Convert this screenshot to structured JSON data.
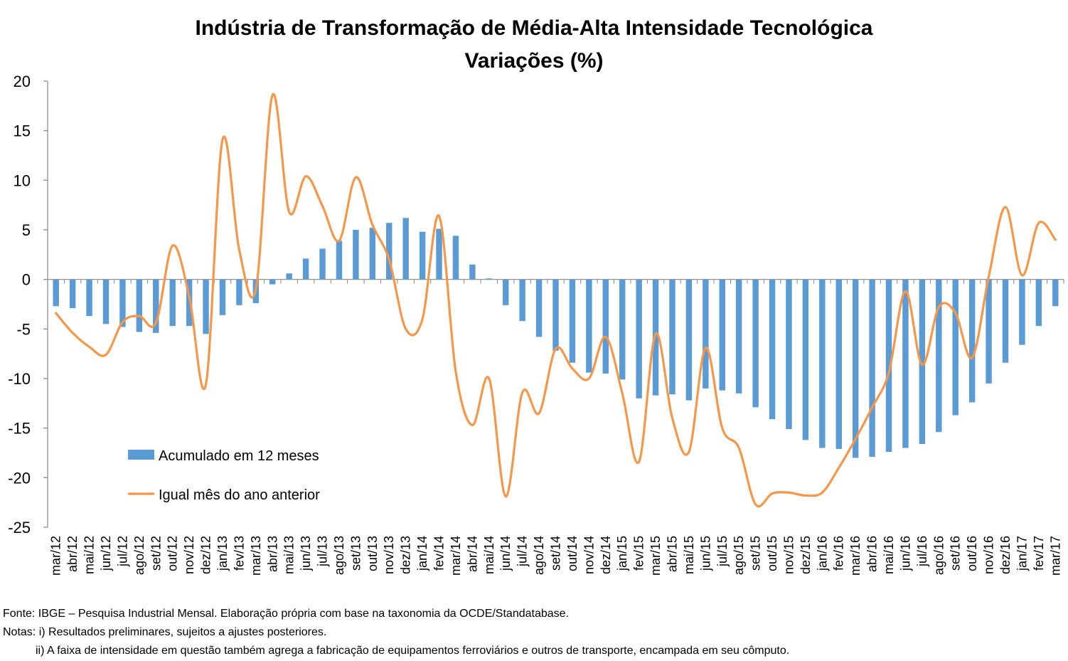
{
  "chart_data": {
    "type": "bar+line",
    "title": "Indústria de Transformação de Média-Alta Intensidade Tecnológica",
    "subtitle": "Variações (%)",
    "xlabel": "",
    "ylabel": "",
    "ylim": [
      -25,
      20
    ],
    "yticks": [
      20,
      15,
      10,
      5,
      0,
      -5,
      -10,
      -15,
      -20,
      -25
    ],
    "legend_position": "bottom-left",
    "grid": false,
    "categories": [
      "mar/12",
      "abr/12",
      "mai/12",
      "jun/12",
      "jul/12",
      "ago/12",
      "set/12",
      "out/12",
      "nov/12",
      "dez/12",
      "jan/13",
      "fev/13",
      "mar/13",
      "abr/13",
      "mai/13",
      "jun/13",
      "jul/13",
      "ago/13",
      "set/13",
      "out/13",
      "nov/13",
      "dez/13",
      "jan/14",
      "fev/14",
      "mar/14",
      "abr/14",
      "mai/14",
      "jun/14",
      "jul/14",
      "ago/14",
      "set/14",
      "out/14",
      "nov/14",
      "dez/14",
      "jan/15",
      "fev/15",
      "mar/15",
      "abr/15",
      "mai/15",
      "jun/15",
      "jul/15",
      "ago/15",
      "set/15",
      "out/15",
      "nov/15",
      "dez/15",
      "jan/16",
      "fev/16",
      "mar/16",
      "abr/16",
      "mai/16",
      "jun/16",
      "jul/16",
      "ago/16",
      "set/16",
      "out/16",
      "nov/16",
      "dez/16",
      "jan/17",
      "fev/17",
      "mar/17"
    ],
    "series": [
      {
        "name": "Acumulado em 12 meses",
        "type": "bar",
        "color": "#5B9BD5",
        "values": [
          -2.7,
          -2.9,
          -3.7,
          -4.5,
          -4.8,
          -5.3,
          -5.4,
          -4.7,
          -4.7,
          -5.5,
          -3.6,
          -2.6,
          -2.4,
          -0.5,
          0.6,
          2.1,
          3.1,
          3.9,
          5.0,
          5.2,
          5.7,
          6.2,
          4.8,
          5.1,
          4.4,
          1.5,
          0.1,
          -2.6,
          -4.2,
          -5.8,
          -7.2,
          -8.4,
          -9.4,
          -9.5,
          -10.1,
          -12.0,
          -11.7,
          -11.6,
          -12.2,
          -11.0,
          -11.2,
          -11.5,
          -12.9,
          -14.1,
          -15.1,
          -16.2,
          -17.0,
          -17.1,
          -18.0,
          -17.9,
          -17.4,
          -17.0,
          -16.6,
          -15.4,
          -13.7,
          -12.4,
          -10.5,
          -8.4,
          -6.6,
          -4.7,
          -2.7
        ]
      },
      {
        "name": "Igual mês do ano anterior",
        "type": "line",
        "color": "#F79646",
        "values": [
          -3.4,
          -5.4,
          -6.8,
          -7.6,
          -4.3,
          -3.7,
          -4.4,
          3.4,
          -1.7,
          -10.6,
          14.1,
          3.0,
          -1.0,
          18.6,
          6.8,
          10.4,
          7.4,
          3.9,
          10.3,
          5.5,
          2.0,
          -5.0,
          -4.0,
          6.4,
          -9.3,
          -14.7,
          -10.0,
          -21.9,
          -11.4,
          -13.5,
          -7.0,
          -9.0,
          -10.0,
          -5.8,
          -11.5,
          -18.4,
          -5.5,
          -14.0,
          -17.4,
          -6.9,
          -15.0,
          -17.0,
          -22.7,
          -21.6,
          -21.5,
          -21.8,
          -21.5,
          -19.0,
          -16.1,
          -12.9,
          -9.4,
          -1.2,
          -8.6,
          -2.8,
          -3.4,
          -7.9,
          0.3,
          7.3,
          0.4,
          5.7,
          4.0
        ]
      }
    ]
  },
  "notes": {
    "source": "Fonte: IBGE – Pesquisa Industrial Mensal. Elaboração própria com base na taxonomia da OCDE/Standatabase.",
    "note_1": "Notas: i) Resultados preliminares, sujeitos a ajustes posteriores.",
    "note_2": "ii) A faixa de intensidade em questão também agrega a fabricação de equipamentos ferroviários e outros de transporte, encampada em seu cômputo."
  }
}
